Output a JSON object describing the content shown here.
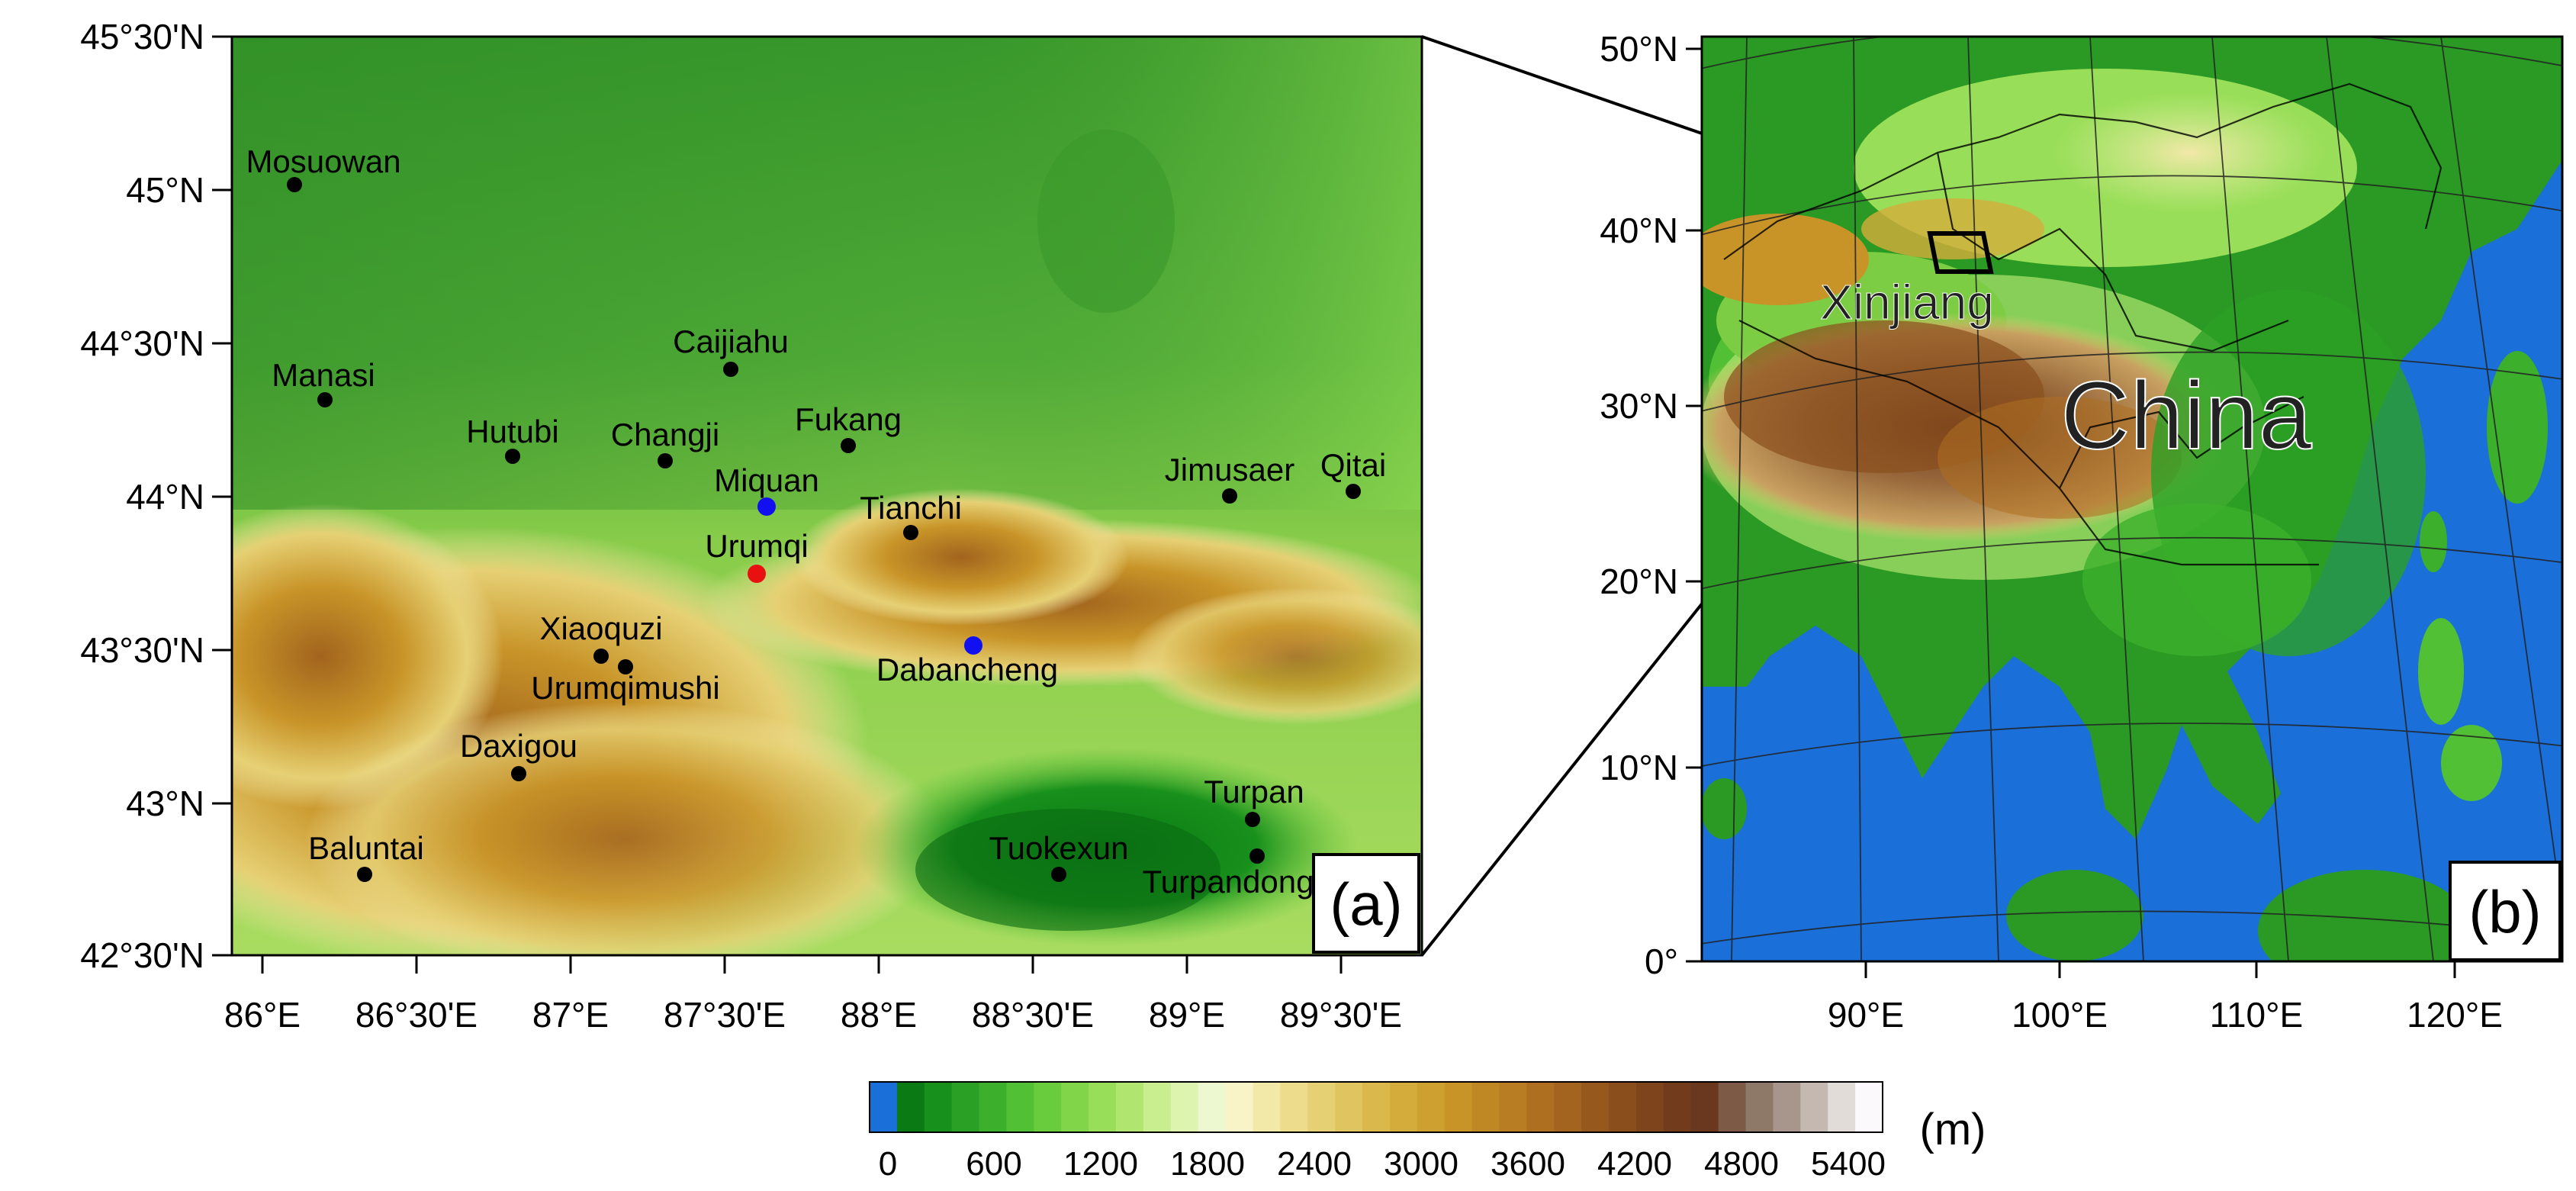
{
  "panel_a": {
    "label": "(a)",
    "lat_ticks": [
      "45°30'N",
      "45°N",
      "44°30'N",
      "44°N",
      "43°30'N",
      "43°N",
      "42°30'N"
    ],
    "lon_ticks": [
      "86°E",
      "86°30'E",
      "87°E",
      "87°30'E",
      "88°E",
      "88°30'E",
      "89°E",
      "89°30'E"
    ],
    "stations": [
      {
        "name": "Mosuowan",
        "color": "#000000"
      },
      {
        "name": "Caijiahu",
        "color": "#000000"
      },
      {
        "name": "Manasi",
        "color": "#000000"
      },
      {
        "name": "Hutubi",
        "color": "#000000"
      },
      {
        "name": "Changji",
        "color": "#000000"
      },
      {
        "name": "Fukang",
        "color": "#000000"
      },
      {
        "name": "Miquan",
        "color": "#1010f0"
      },
      {
        "name": "Jimusaer",
        "color": "#000000"
      },
      {
        "name": "Qitai",
        "color": "#000000"
      },
      {
        "name": "Tianchi",
        "color": "#000000"
      },
      {
        "name": "Urumqi",
        "color": "#e81010"
      },
      {
        "name": "Xiaoquzi",
        "color": "#000000"
      },
      {
        "name": "Urumqimushi",
        "color": "#000000"
      },
      {
        "name": "Dabancheng",
        "color": "#1010f0"
      },
      {
        "name": "Daxigou",
        "color": "#000000"
      },
      {
        "name": "Turpan",
        "color": "#000000"
      },
      {
        "name": "Tuokexun",
        "color": "#000000"
      },
      {
        "name": "Turpandong",
        "color": "#000000"
      },
      {
        "name": "Baluntai",
        "color": "#000000"
      }
    ]
  },
  "panel_b": {
    "label": "(b)",
    "lat_ticks": [
      "50°N",
      "40°N",
      "30°N",
      "20°N",
      "10°N",
      "0°"
    ],
    "lon_ticks": [
      "90°E",
      "100°E",
      "110°E",
      "120°E"
    ],
    "region_label": "Xinjiang",
    "country_label": "China"
  },
  "colorbar": {
    "ticks": [
      "0",
      "600",
      "1200",
      "1800",
      "2400",
      "3000",
      "3600",
      "4200",
      "4800",
      "5400"
    ],
    "unit": "(m)",
    "colors": [
      "#1a6fd8",
      "#0a7a14",
      "#18901c",
      "#2aa024",
      "#3cb02c",
      "#52c034",
      "#68cc3c",
      "#80d648",
      "#98de58",
      "#b0e670",
      "#c8ee90",
      "#dcf4b0",
      "#eef8d0",
      "#f8f4c8",
      "#f2e8a8",
      "#ecdc8c",
      "#e6d074",
      "#e0c460",
      "#dab84c",
      "#d4ac3c",
      "#cea030",
      "#c89428",
      "#c08824",
      "#b87c22",
      "#ae7020",
      "#a2641e",
      "#96581c",
      "#8a4e1c",
      "#7e441c",
      "#723c1c",
      "#6a381e",
      "#7c5a46",
      "#8e7868",
      "#a8968c",
      "#c4b8b0",
      "#e2dcd8",
      "#fbf9fb"
    ]
  }
}
